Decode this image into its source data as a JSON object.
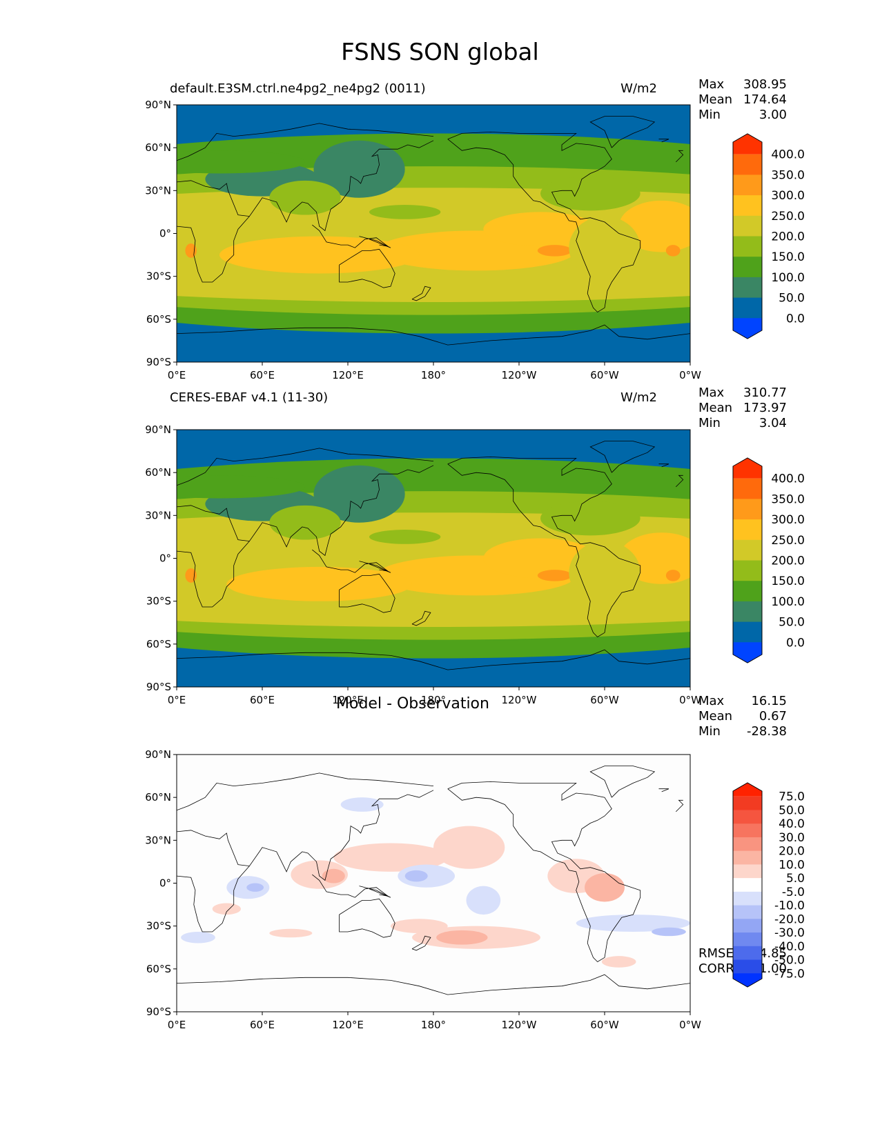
{
  "figure": {
    "title": "FSNS SON global"
  },
  "chart_data": [
    {
      "type": "heatmap",
      "panel": "test",
      "title": "default.E3SM.ctrl.ne4pg2_ne4pg2 (0011)",
      "units": "W/m2",
      "stats": {
        "max": "308.95",
        "mean": "174.64",
        "min": "3.00"
      },
      "x_ticks": [
        "0°E",
        "60°E",
        "120°E",
        "180°",
        "120°W",
        "60°W",
        "0°W"
      ],
      "y_ticks": [
        "90°N",
        "60°N",
        "30°N",
        "0°",
        "30°S",
        "60°S",
        "90°S"
      ],
      "xlim": [
        0,
        360
      ],
      "ylim": [
        -90,
        90
      ],
      "colorbar": {
        "levels": [
          "400.0",
          "350.0",
          "300.0",
          "250.0",
          "200.0",
          "150.0",
          "100.0",
          "50.0",
          "0.0"
        ],
        "colors": [
          "#ff3300",
          "#ff6a0c",
          "#ff9a1a",
          "#ffc21f",
          "#d2c928",
          "#93bc1a",
          "#4fa21b",
          "#3a8664",
          "#0067a8",
          "#0044ff"
        ],
        "extend": "both"
      }
    },
    {
      "type": "heatmap",
      "panel": "reference",
      "title": "CERES-EBAF v4.1 (11-30)",
      "units": "W/m2",
      "stats": {
        "max": "310.77",
        "mean": "173.97",
        "min": "3.04"
      },
      "x_ticks": [
        "0°E",
        "60°E",
        "120°E",
        "180°",
        "120°W",
        "60°W",
        "0°W"
      ],
      "y_ticks": [
        "90°N",
        "60°N",
        "30°N",
        "0°",
        "30°S",
        "60°S",
        "90°S"
      ],
      "xlim": [
        0,
        360
      ],
      "ylim": [
        -90,
        90
      ],
      "colorbar": {
        "levels": [
          "400.0",
          "350.0",
          "300.0",
          "250.0",
          "200.0",
          "150.0",
          "100.0",
          "50.0",
          "0.0"
        ],
        "colors": [
          "#ff3300",
          "#ff6a0c",
          "#ff9a1a",
          "#ffc21f",
          "#d2c928",
          "#93bc1a",
          "#4fa21b",
          "#3a8664",
          "#0067a8",
          "#0044ff"
        ],
        "extend": "both"
      }
    },
    {
      "type": "heatmap",
      "panel": "difference",
      "title": "Model - Observation",
      "stats": {
        "max": "16.15",
        "mean": "0.67",
        "min": "-28.38",
        "rmse": "4.85",
        "corr": "1.00"
      },
      "stat_labels": {
        "max": "Max",
        "mean": "Mean",
        "min": "Min",
        "rmse": "RMSE",
        "corr": "CORR"
      },
      "x_ticks": [
        "0°E",
        "60°E",
        "120°E",
        "180°",
        "120°W",
        "60°W",
        "0°W"
      ],
      "y_ticks": [
        "90°N",
        "60°N",
        "30°N",
        "0°",
        "30°S",
        "60°S",
        "90°S"
      ],
      "xlim": [
        0,
        360
      ],
      "ylim": [
        -90,
        90
      ],
      "colorbar": {
        "levels": [
          "75.0",
          "50.0",
          "40.0",
          "30.0",
          "20.0",
          "10.0",
          "5.0",
          "-5.0",
          "-10.0",
          "-20.0",
          "-30.0",
          "-40.0",
          "-50.0",
          "-75.0"
        ],
        "colors": [
          "#ff2200",
          "#f23b22",
          "#f5553f",
          "#f7745f",
          "#f99480",
          "#fbb5a3",
          "#fdd6cb",
          "#ffffff",
          "#d8e0fb",
          "#b6c3f8",
          "#93a6f4",
          "#7089f0",
          "#4d6bec",
          "#2a4de8",
          "#0033ff"
        ],
        "extend": "both"
      }
    }
  ],
  "stat_labels": {
    "max": "Max",
    "mean": "Mean",
    "min": "Min"
  }
}
